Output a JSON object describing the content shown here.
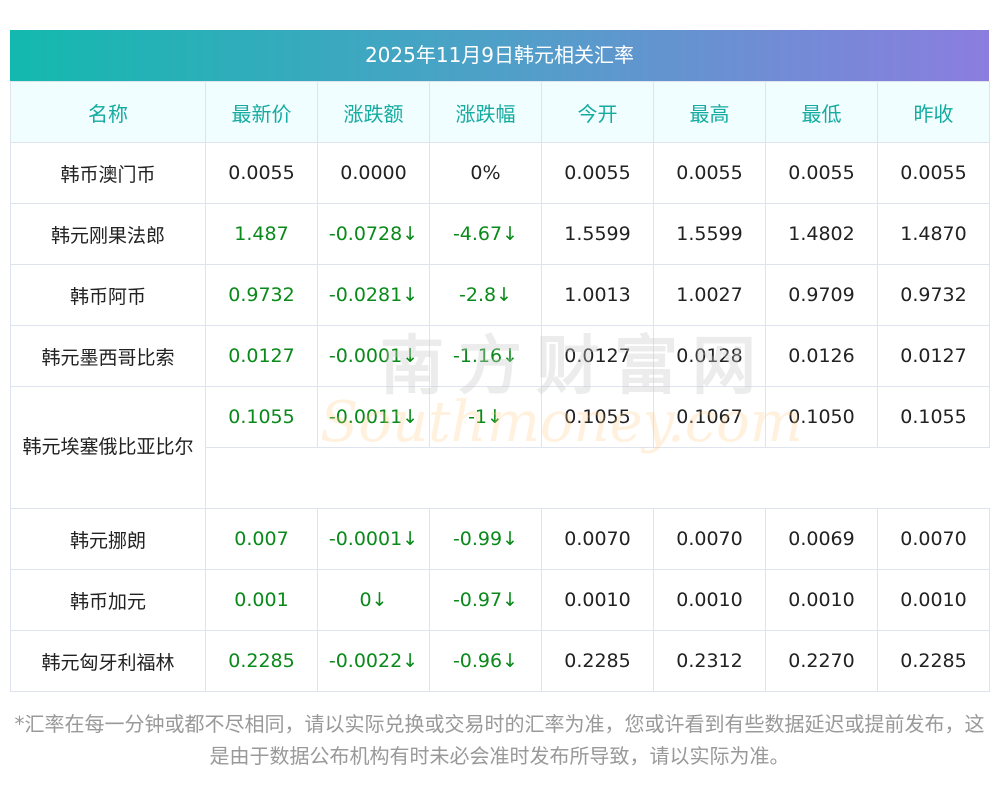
{
  "title": "2025年11月9日韩元相关汇率",
  "headers": [
    "名称",
    "最新价",
    "涨跌额",
    "涨跌幅",
    "今开",
    "最高",
    "最低",
    "昨收"
  ],
  "rows": [
    {
      "name": "韩币澳门币",
      "latest": "0.0055",
      "change": "0.0000",
      "pct": "0%",
      "open": "0.0055",
      "high": "0.0055",
      "low": "0.0055",
      "prev": "0.0055",
      "down": false
    },
    {
      "name": "韩元刚果法郎",
      "latest": "1.487",
      "change": "-0.0728↓",
      "pct": "-4.67↓",
      "open": "1.5599",
      "high": "1.5599",
      "low": "1.4802",
      "prev": "1.4870",
      "down": true
    },
    {
      "name": "韩币阿币",
      "latest": "0.9732",
      "change": "-0.0281↓",
      "pct": "-2.8↓",
      "open": "1.0013",
      "high": "1.0027",
      "low": "0.9709",
      "prev": "0.9732",
      "down": true
    },
    {
      "name": "韩元墨西哥比索",
      "latest": "0.0127",
      "change": "-0.0001↓",
      "pct": "-1.16↓",
      "open": "0.0127",
      "high": "0.0128",
      "low": "0.0126",
      "prev": "0.0127",
      "down": true
    },
    {
      "name": "韩元埃塞俄比亚比尔",
      "latest": "0.1055",
      "change": "-0.0011↓",
      "pct": "-1↓",
      "open": "0.1055",
      "high": "0.1067",
      "low": "0.1050",
      "prev": "0.1055",
      "down": true,
      "wrap": true
    },
    {
      "name": "韩元挪朗",
      "latest": "0.007",
      "change": "-0.0001↓",
      "pct": "-0.99↓",
      "open": "0.0070",
      "high": "0.0070",
      "low": "0.0069",
      "prev": "0.0070",
      "down": true
    },
    {
      "name": "韩币加元",
      "latest": "0.001",
      "change": "0↓",
      "pct": "-0.97↓",
      "open": "0.0010",
      "high": "0.0010",
      "low": "0.0010",
      "prev": "0.0010",
      "down": true
    },
    {
      "name": "韩元匈牙利福林",
      "latest": "0.2285",
      "change": "-0.0022↓",
      "pct": "-0.96↓",
      "open": "0.2285",
      "high": "0.2312",
      "low": "0.2270",
      "prev": "0.2285",
      "down": true
    }
  ],
  "watermark": {
    "cn": "南方财富网",
    "en": "Southmoney.com"
  },
  "note": "*汇率在每一分钟或都不尽相同，请以实际兑换或交易时的汇率为准，您或许看到有些数据延迟或提前发布，这是由于数据公布机构有时未必会准时发布所导致，请以实际为准。",
  "colors": {
    "accent": "#16aba0",
    "down": "#0a8a1a"
  }
}
